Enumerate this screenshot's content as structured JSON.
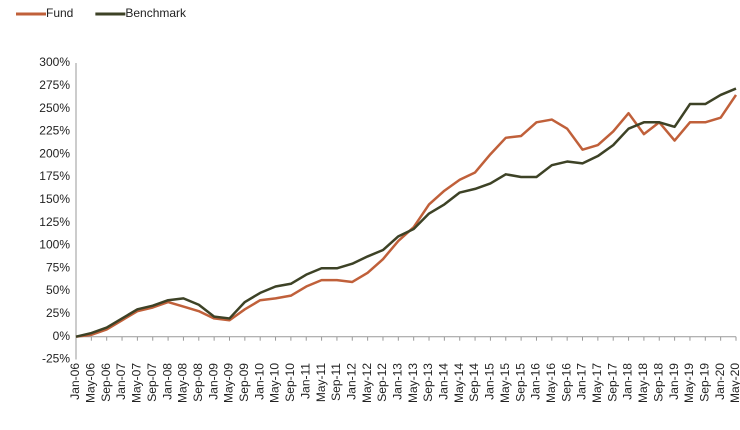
{
  "chart_data": {
    "type": "line",
    "categories": [
      "Jan-06",
      "May-06",
      "Sep-06",
      "Jan-07",
      "May-07",
      "Sep-07",
      "Jan-08",
      "May-08",
      "Sep-08",
      "Jan-09",
      "May-09",
      "Sep-09",
      "Jan-10",
      "May-10",
      "Sep-10",
      "Jan-11",
      "May-11",
      "Sep-11",
      "Jan-12",
      "May-12",
      "Sep-12",
      "Jan-13",
      "May-13",
      "Sep-13",
      "Jan-14",
      "May-14",
      "Sep-14",
      "Jan-15",
      "May-15",
      "Sep-15",
      "Jan-16",
      "May-16",
      "Sep-16",
      "Jan-17",
      "May-17",
      "Sep-17",
      "Jan-18",
      "May-18",
      "Sep-18",
      "Jan-19",
      "May-19",
      "Sep-19",
      "Jan-20",
      "May-20"
    ],
    "series": [
      {
        "name": "Fund",
        "color": "#c0603a",
        "values": [
          0,
          2,
          8,
          18,
          28,
          32,
          38,
          33,
          28,
          20,
          18,
          30,
          40,
          42,
          45,
          55,
          62,
          62,
          60,
          70,
          85,
          105,
          120,
          145,
          160,
          172,
          180,
          200,
          218,
          220,
          235,
          238,
          228,
          205,
          210,
          225,
          245,
          222,
          235,
          215,
          235,
          235,
          240,
          265
        ]
      },
      {
        "name": "Benchmark",
        "color": "#3d4226",
        "values": [
          0,
          4,
          10,
          20,
          30,
          34,
          40,
          42,
          35,
          22,
          20,
          38,
          48,
          55,
          58,
          68,
          75,
          75,
          80,
          88,
          95,
          110,
          118,
          135,
          145,
          158,
          162,
          168,
          178,
          175,
          175,
          188,
          192,
          190,
          198,
          210,
          228,
          235,
          235,
          230,
          255,
          255,
          265,
          272
        ]
      }
    ],
    "ylim": [
      -25,
      300
    ],
    "yticks": [
      {
        "value": -25,
        "label": "-25%"
      },
      {
        "value": 0,
        "label": "0%"
      },
      {
        "value": 25,
        "label": "25%"
      },
      {
        "value": 50,
        "label": "50%"
      },
      {
        "value": 75,
        "label": "75%"
      },
      {
        "value": 100,
        "label": "100%"
      },
      {
        "value": 125,
        "label": "125%"
      },
      {
        "value": 150,
        "label": "150%"
      },
      {
        "value": 175,
        "label": "175%"
      },
      {
        "value": 200,
        "label": "200%"
      },
      {
        "value": 225,
        "label": "225%"
      },
      {
        "value": 250,
        "label": "250%"
      },
      {
        "value": 275,
        "label": "275%"
      },
      {
        "value": 300,
        "label": "300%"
      }
    ],
    "legend": "top-left",
    "grid": false
  }
}
